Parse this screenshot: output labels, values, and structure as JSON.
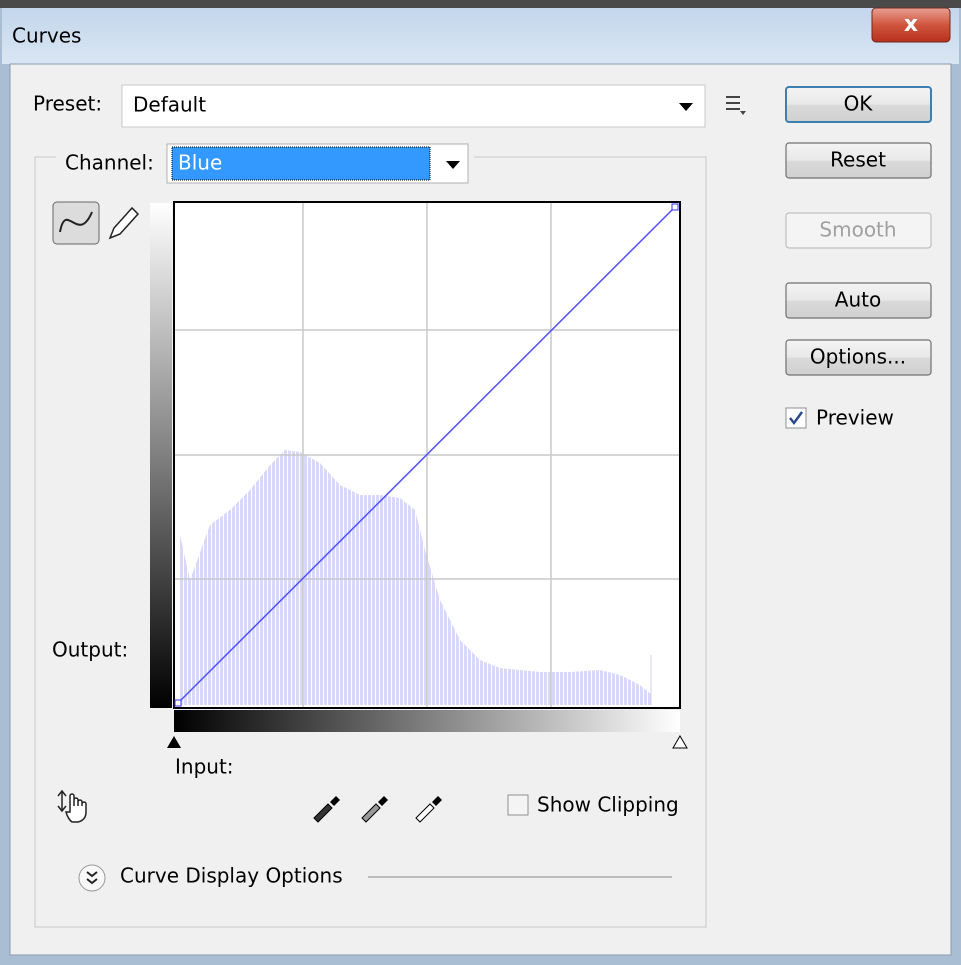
{
  "window": {
    "title": "Curves"
  },
  "preset": {
    "label": "Preset:",
    "value": "Default"
  },
  "buttons": {
    "ok": "OK",
    "reset": "Reset",
    "smooth": "Smooth",
    "auto": "Auto",
    "options": "Options..."
  },
  "preview": {
    "label": "Preview",
    "checked": true
  },
  "channel": {
    "label": "Channel:",
    "value": "Blue"
  },
  "graph": {
    "output_label": "Output:",
    "input_label": "Input:"
  },
  "show_clipping": {
    "label": "Show Clipping",
    "checked": false
  },
  "curve_display_options": {
    "label": "Curve Display Options"
  }
}
